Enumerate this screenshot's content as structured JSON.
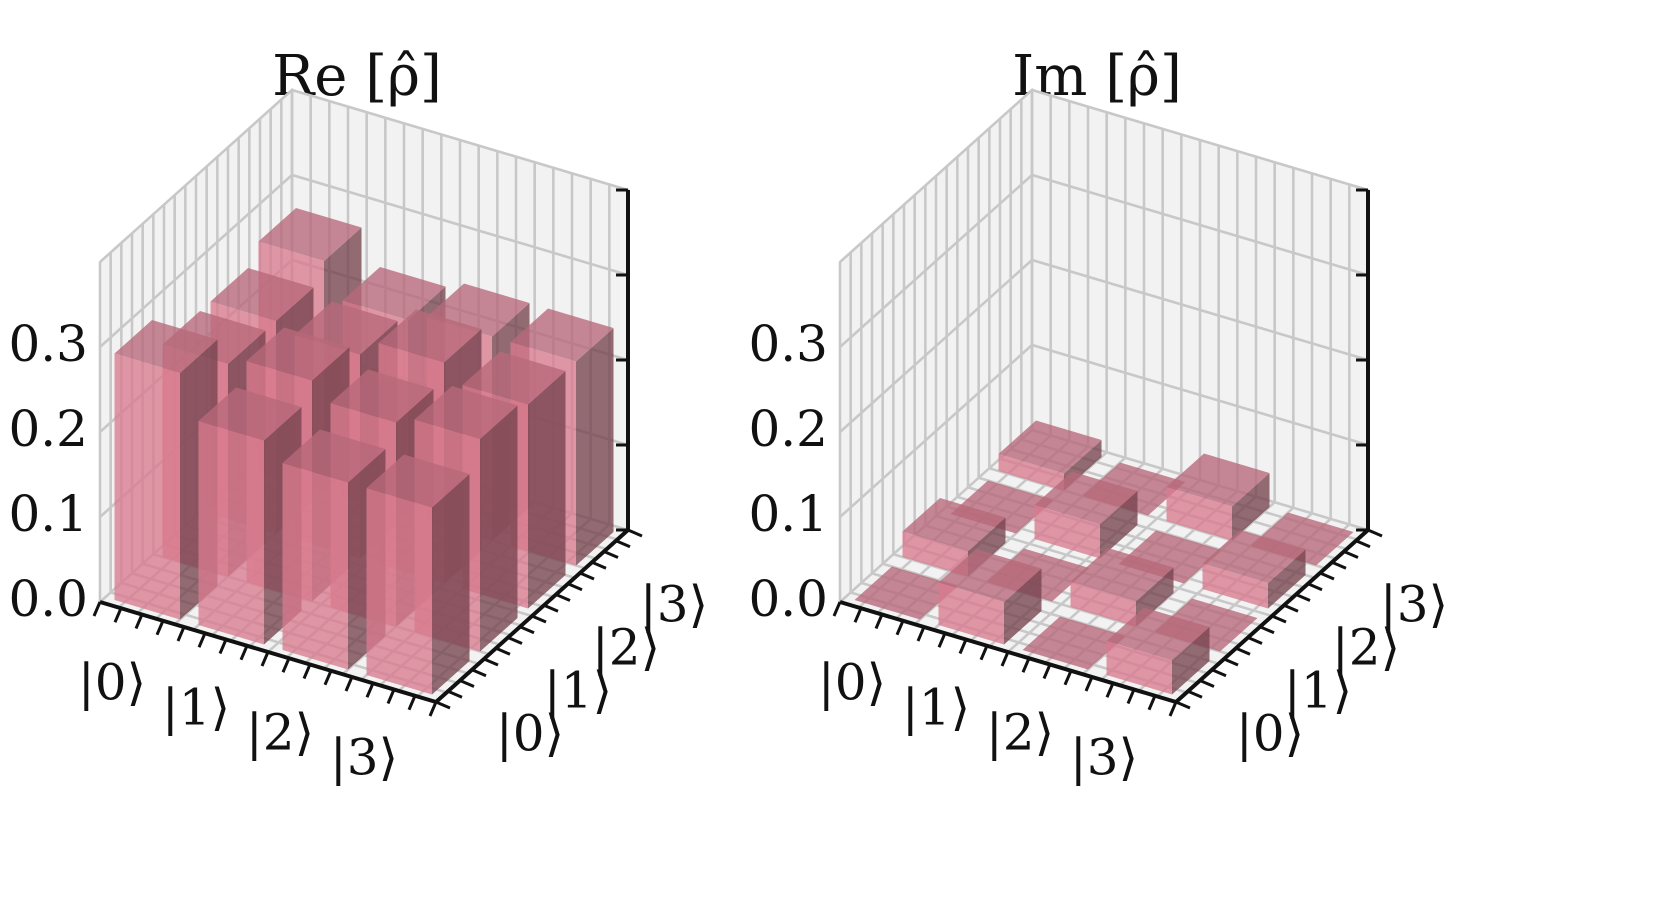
{
  "chart_data": [
    {
      "type": "bar3d",
      "title": "Re [ρ̂]",
      "row_labels": [
        "|0⟩",
        "|1⟩",
        "|2⟩",
        "|3⟩"
      ],
      "col_labels": [
        "|0⟩",
        "|1⟩",
        "|2⟩",
        "|3⟩"
      ],
      "z_tick_labels": [
        "0.0",
        "0.1",
        "0.2",
        "0.3"
      ],
      "zlim": [
        0,
        0.4
      ],
      "values": [
        [
          0.29,
          0.25,
          0.25,
          0.27
        ],
        [
          0.24,
          0.26,
          0.24,
          0.23
        ],
        [
          0.22,
          0.24,
          0.26,
          0.24
        ],
        [
          0.22,
          0.25,
          0.24,
          0.24
        ]
      ],
      "bar_color": "#d97b8f",
      "grid": true
    },
    {
      "type": "bar3d",
      "title": "Im [ρ̂]",
      "row_labels": [
        "|0⟩",
        "|1⟩",
        "|2⟩",
        "|3⟩"
      ],
      "col_labels": [
        "|0⟩",
        "|1⟩",
        "|2⟩",
        "|3⟩"
      ],
      "z_tick_labels": [
        "0.0",
        "0.1",
        "0.2",
        "0.3"
      ],
      "zlim": [
        0,
        0.4
      ],
      "values": [
        [
          0.0,
          0.03,
          0.0,
          0.02
        ],
        [
          0.05,
          0.0,
          0.04,
          0.0
        ],
        [
          0.0,
          0.03,
          0.0,
          0.04
        ],
        [
          0.04,
          0.0,
          0.03,
          0.0
        ]
      ],
      "bar_color": "#d97b8f",
      "grid": true
    }
  ]
}
